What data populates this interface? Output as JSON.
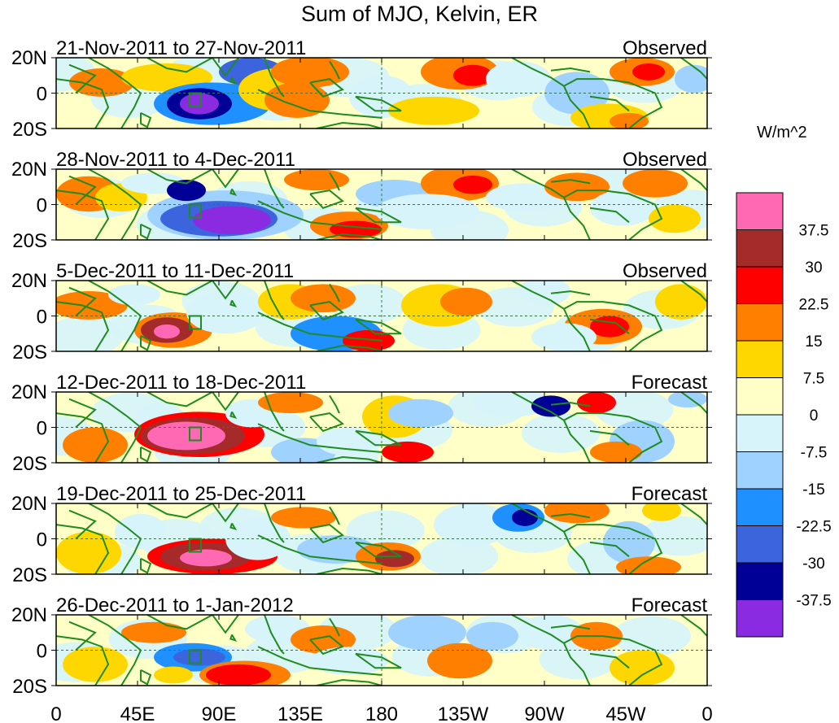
{
  "title": "Sum of MJO, Kelvin, ER",
  "units": "W/m^2",
  "lat_labels": [
    "20N",
    "0",
    "20S"
  ],
  "lon_labels": [
    "0",
    "45E",
    "90E",
    "135E",
    "180",
    "135W",
    "90W",
    "45W",
    "0"
  ],
  "panels": [
    {
      "dates": "21-Nov-2011 to 27-Nov-2011",
      "status": "Observed"
    },
    {
      "dates": "28-Nov-2011 to 4-Dec-2011",
      "status": "Observed"
    },
    {
      "dates": "5-Dec-2011 to 11-Dec-2011",
      "status": "Observed"
    },
    {
      "dates": "12-Dec-2011 to 18-Dec-2011",
      "status": "Forecast"
    },
    {
      "dates": "19-Dec-2011 to 25-Dec-2011",
      "status": "Forecast"
    },
    {
      "dates": "26-Dec-2011 to 1-Jan-2012",
      "status": "Forecast"
    }
  ],
  "colorbar": {
    "labels": [
      "37.5",
      "30",
      "22.5",
      "15",
      "7.5",
      "0",
      "-7.5",
      "-15",
      "-22.5",
      "-30",
      "-37.5"
    ],
    "colors": [
      "#ff69b4",
      "#a52a2a",
      "#ff0000",
      "#ff7f00",
      "#ffd700",
      "#ffffc8",
      "#d6f4fa",
      "#a0d2ff",
      "#1e90ff",
      "#3c64dc",
      "#000096",
      "#8a2be2"
    ]
  },
  "map_colors": {
    "land": "#1e8c1e",
    "zero_line": "#2e7d32"
  }
}
